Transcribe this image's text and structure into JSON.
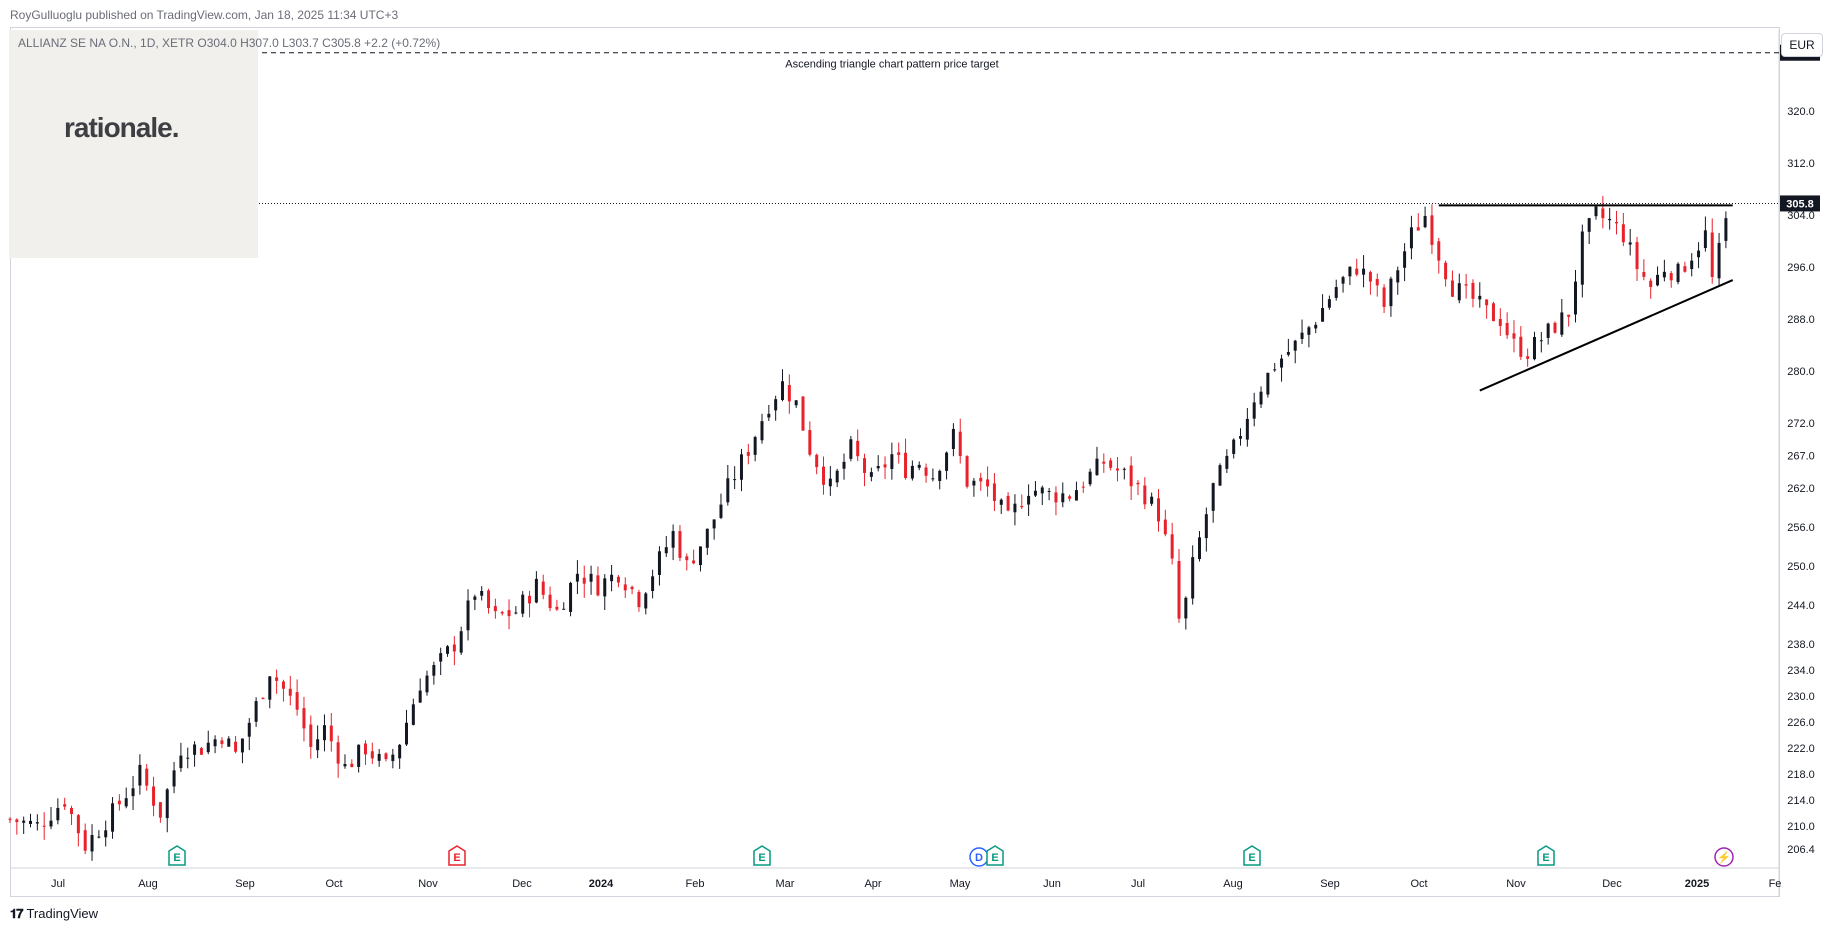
{
  "publisher_line": "RoyGulluoglu published on TradingView.com, Jan 18, 2025 11:34 UTC+3",
  "symbol_line": "ALLIANZ SE NA O.N., 1D, XETR  O304.0  H307.0  L303.7  C305.8  +2.2 (+0.72%)",
  "logo": "rationale.",
  "currency": "EUR",
  "footer_brand": "TradingView",
  "colors": {
    "up": "#131722",
    "down": "#e8212b",
    "accent_badge": "#131722"
  },
  "chart_data": {
    "type": "candlestick",
    "ylim": [
      203.5,
      332.5
    ],
    "y_ticks": [
      "206.4",
      "210.0",
      "214.0",
      "218.0",
      "222.0",
      "226.0",
      "230.0",
      "234.0",
      "238.0",
      "244.0",
      "250.0",
      "256.0",
      "262.0",
      "267.0",
      "272.0",
      "280.0",
      "288.0",
      "296.0",
      "304.0",
      "312.0",
      "320.0"
    ],
    "x_ticks": [
      "Jul",
      "Aug",
      "Sep",
      "Oct",
      "Nov",
      "Dec",
      "2024",
      "Feb",
      "Mar",
      "Apr",
      "May",
      "Jun",
      "Jul",
      "Aug",
      "Sep",
      "Oct",
      "Nov",
      "Dec",
      "2025",
      "Fe"
    ],
    "last_price": "305.8",
    "target_price": "329.0",
    "target_label": "Ascending triangle chart pattern price target",
    "events": [
      {
        "label": "E",
        "type": "earnings"
      },
      {
        "label": "E",
        "type": "earnings-miss"
      },
      {
        "label": "E",
        "type": "earnings"
      },
      {
        "label": "D",
        "type": "dividend"
      },
      {
        "label": "E",
        "type": "earnings"
      },
      {
        "label": "E",
        "type": "earnings"
      },
      {
        "label": "E",
        "type": "earnings"
      },
      {
        "label": "⚡",
        "type": "split-flash"
      }
    ],
    "close_path": [
      [
        0,
        211
      ],
      [
        20,
        210
      ],
      [
        40,
        214
      ],
      [
        55,
        207
      ],
      [
        75,
        212
      ],
      [
        95,
        218
      ],
      [
        110,
        212
      ],
      [
        125,
        222
      ],
      [
        140,
        222
      ],
      [
        155,
        224
      ],
      [
        165,
        221
      ],
      [
        175,
        226
      ],
      [
        185,
        231
      ],
      [
        190,
        234
      ],
      [
        200,
        231
      ],
      [
        210,
        228
      ],
      [
        220,
        222
      ],
      [
        230,
        225
      ],
      [
        245,
        219
      ],
      [
        260,
        222
      ],
      [
        275,
        219
      ],
      [
        285,
        223
      ],
      [
        300,
        232
      ],
      [
        310,
        234
      ],
      [
        325,
        238
      ],
      [
        340,
        246
      ],
      [
        355,
        242
      ],
      [
        370,
        243
      ],
      [
        385,
        247
      ],
      [
        400,
        243
      ],
      [
        415,
        249
      ],
      [
        430,
        247
      ],
      [
        445,
        249
      ],
      [
        460,
        245
      ],
      [
        470,
        249
      ],
      [
        485,
        255
      ],
      [
        495,
        250
      ],
      [
        510,
        255
      ],
      [
        525,
        262
      ],
      [
        540,
        268
      ],
      [
        555,
        275
      ],
      [
        565,
        278
      ],
      [
        575,
        275
      ],
      [
        585,
        268
      ],
      [
        600,
        262
      ],
      [
        615,
        268
      ],
      [
        630,
        263
      ],
      [
        645,
        267
      ],
      [
        655,
        265
      ],
      [
        665,
        266
      ],
      [
        675,
        264
      ],
      [
        690,
        270
      ],
      [
        700,
        263
      ],
      [
        715,
        262
      ],
      [
        730,
        257
      ],
      [
        745,
        262
      ],
      [
        760,
        261
      ],
      [
        775,
        261
      ],
      [
        790,
        264
      ],
      [
        800,
        266
      ],
      [
        815,
        264
      ],
      [
        830,
        261
      ],
      [
        840,
        258
      ],
      [
        850,
        250
      ],
      [
        856,
        240
      ],
      [
        865,
        250
      ],
      [
        880,
        262
      ],
      [
        895,
        268
      ],
      [
        910,
        276
      ],
      [
        925,
        281
      ],
      [
        940,
        284
      ],
      [
        955,
        288
      ],
      [
        970,
        293
      ],
      [
        985,
        296
      ],
      [
        995,
        294
      ],
      [
        1005,
        290
      ],
      [
        1015,
        296
      ],
      [
        1025,
        301
      ],
      [
        1035,
        304
      ],
      [
        1045,
        298
      ],
      [
        1055,
        293
      ],
      [
        1062,
        292
      ],
      [
        1070,
        291
      ],
      [
        1080,
        289
      ],
      [
        1090,
        288
      ],
      [
        1100,
        284
      ],
      [
        1110,
        283
      ],
      [
        1120,
        285
      ],
      [
        1130,
        287
      ],
      [
        1140,
        289
      ],
      [
        1150,
        300
      ],
      [
        1160,
        304
      ],
      [
        1170,
        303
      ],
      [
        1180,
        301
      ],
      [
        1190,
        296
      ],
      [
        1200,
        293
      ],
      [
        1210,
        296
      ],
      [
        1220,
        295
      ],
      [
        1230,
        298
      ],
      [
        1240,
        301
      ],
      [
        1245,
        294
      ],
      [
        1252,
        300
      ],
      [
        1258,
        305.8
      ]
    ],
    "triangle": {
      "resistance": {
        "x": [
          1045,
          1260
        ],
        "y": [
          305.5,
          305.5
        ]
      },
      "support": {
        "x": [
          1075,
          1260
        ],
        "y": [
          277,
          294
        ]
      }
    }
  }
}
